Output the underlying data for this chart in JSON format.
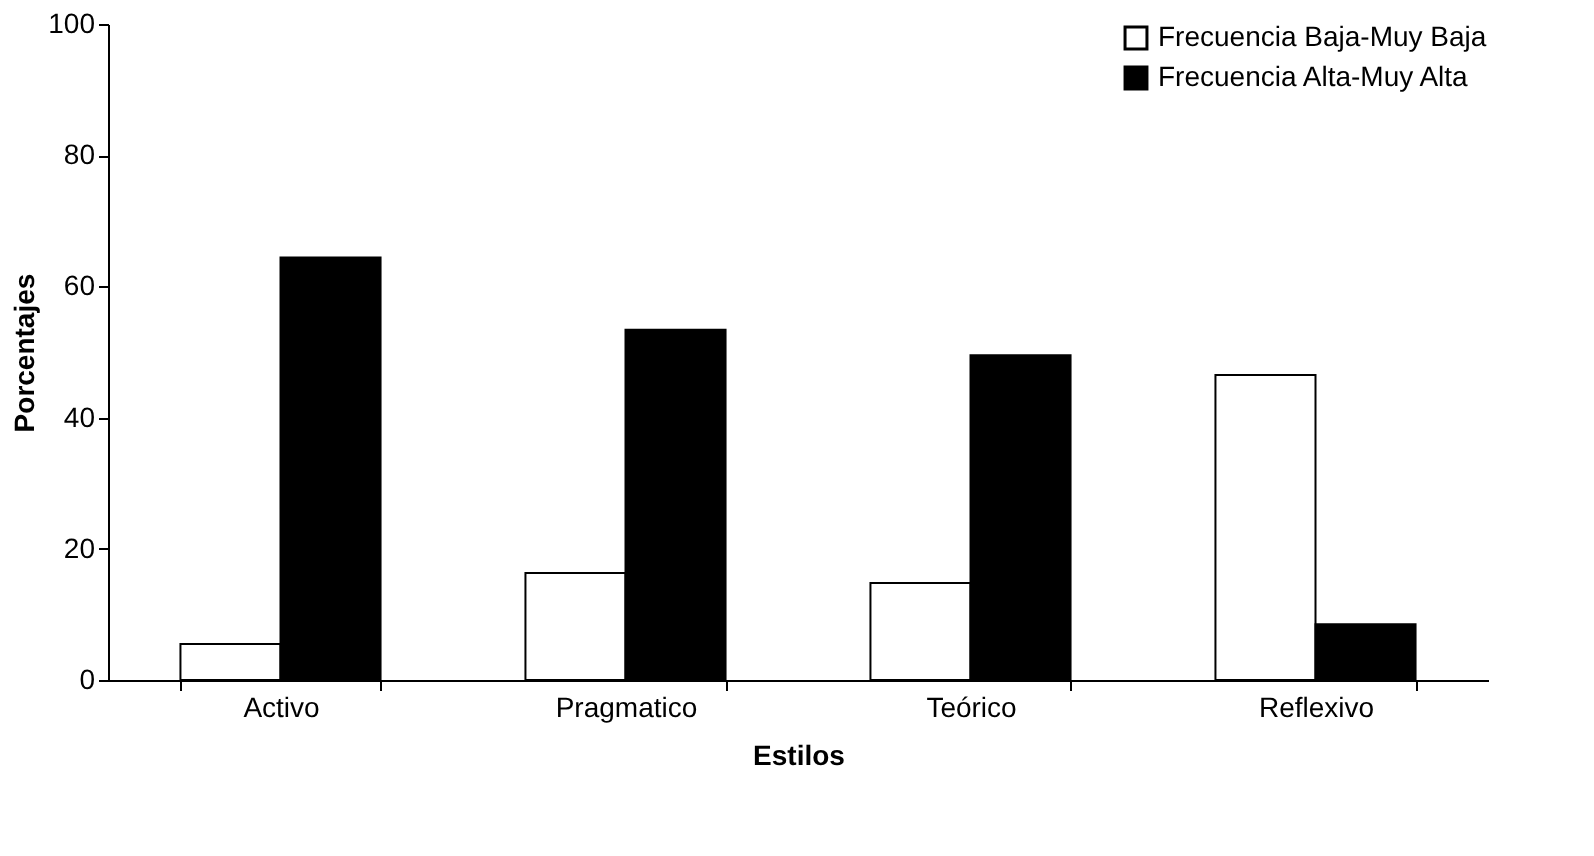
{
  "chart_data": {
    "type": "bar",
    "xlabel": "Estilos",
    "ylabel": "Porcentajes",
    "categories": [
      "Activo",
      "Pragmatico",
      "Teórico",
      "Reflexivo"
    ],
    "series": [
      {
        "name": "Frecuencia Baja-Muy Baja",
        "color": "#ffffff",
        "values": [
          5.5,
          16.3,
          14.8,
          46.5
        ]
      },
      {
        "name": "Frecuencia Alta-Muy Alta",
        "color": "#000000",
        "values": [
          64.4,
          53.4,
          49.5,
          8.5
        ]
      }
    ],
    "ylim": [
      0,
      100
    ],
    "yticks": [
      0,
      20,
      40,
      60,
      80,
      100
    ],
    "grid": false,
    "legend": "top right"
  }
}
